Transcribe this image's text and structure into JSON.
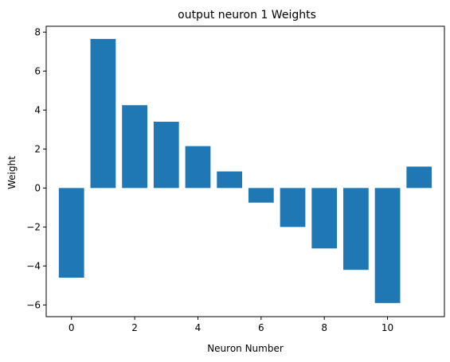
{
  "chart_data": {
    "type": "bar",
    "title": "output neuron 1 Weights",
    "xlabel": "Neuron Number",
    "ylabel": "Weight",
    "x": [
      0,
      1,
      2,
      3,
      4,
      5,
      6,
      7,
      8,
      9,
      10,
      11
    ],
    "values": [
      -4.6,
      7.65,
      4.25,
      3.4,
      2.15,
      0.85,
      -0.75,
      -2.0,
      -3.1,
      -4.2,
      -5.9,
      1.1
    ],
    "xlim": [
      -0.8,
      11.8
    ],
    "ylim": [
      -6.6,
      8.3
    ],
    "xticks": [
      0,
      2,
      4,
      6,
      8,
      10
    ],
    "yticks": [
      -6,
      -4,
      -2,
      0,
      2,
      4,
      6,
      8
    ],
    "ytick_labels": [
      "−6",
      "−4",
      "−2",
      "0",
      "2",
      "4",
      "6",
      "8"
    ],
    "bar_color": "#1f77b4",
    "grid": false,
    "legend": "none"
  }
}
